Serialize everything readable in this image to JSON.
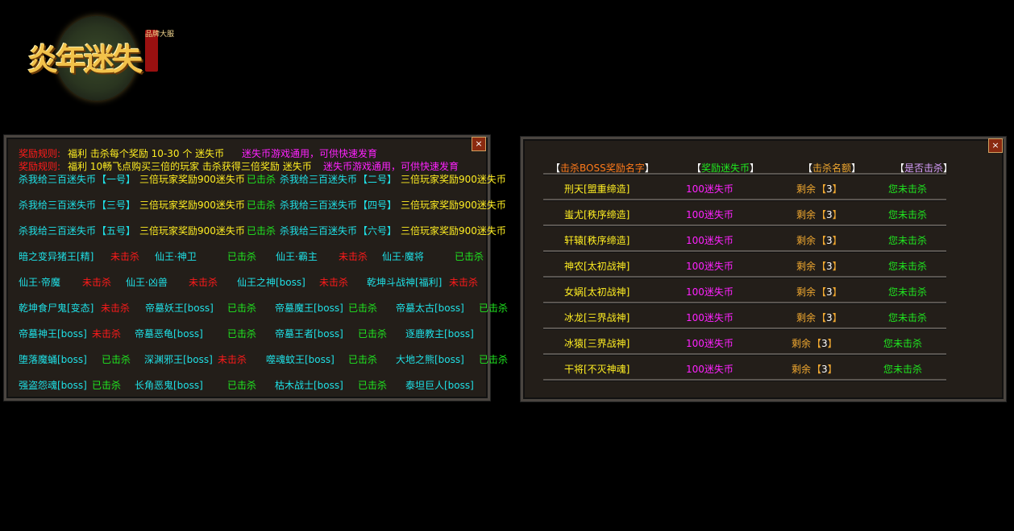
{
  "logo": {
    "title": "炎年迷失",
    "seal": "品牌大服"
  },
  "left_panel": {
    "close_label": "×",
    "rules": [
      {
        "label": "奖励规则:",
        "text": "福利  击杀每个奖励 10-30 个 迷失币",
        "note": "迷失币游戏通用，可供快速发育"
      },
      {
        "label": "奖励规则:",
        "text": "福利 10畅飞点购买三倍的玩家 击杀获得三倍奖励 迷失币",
        "note": "迷失币游戏通用，可供快速发育"
      }
    ],
    "special_rows": [
      [
        {
          "name": "杀我给三百迷失币",
          "tag": "【一号】",
          "reward": "三倍玩家奖励900迷失币",
          "status": "已击杀"
        },
        {
          "name": "杀我给三百迷失币",
          "tag": "【二号】",
          "reward": "三倍玩家奖励900迷失币"
        }
      ],
      [
        {
          "name": "杀我给三百迷失币",
          "tag": "【三号】",
          "reward": "三倍玩家奖励900迷失币",
          "status": "已击杀"
        },
        {
          "name": "杀我给三百迷失币",
          "tag": "【四号】",
          "reward": "三倍玩家奖励900迷失币"
        }
      ],
      [
        {
          "name": "杀我给三百迷失币",
          "tag": "【五号】",
          "reward": "三倍玩家奖励900迷失币",
          "status": "已击杀"
        },
        {
          "name": "杀我给三百迷失币",
          "tag": "【六号】",
          "reward": "三倍玩家奖励900迷失币"
        }
      ]
    ],
    "boss_rows": [
      [
        {
          "name": "暗之变异猪王[精]",
          "status": "未击杀"
        },
        {
          "name": "仙王·神卫",
          "status": "已击杀"
        },
        {
          "name": "仙王·霸主",
          "status": "未击杀"
        },
        {
          "name": "仙王·魔将",
          "status": "已击杀"
        }
      ],
      [
        {
          "name": "仙王·帝魔",
          "status": "未击杀"
        },
        {
          "name": "仙王·凶兽",
          "status": "未击杀"
        },
        {
          "name": "仙王之神[boss]",
          "status": "未击杀"
        },
        {
          "name": "乾坤斗战神[福利]",
          "status": "未击杀"
        }
      ],
      [
        {
          "name": "乾坤食尸鬼[变态]",
          "status": "未击杀"
        },
        {
          "name": "帝墓妖王[boss]",
          "status": "已击杀"
        },
        {
          "name": "帝墓魔王[boss]",
          "status": "已击杀"
        },
        {
          "name": "帝墓太古[boss]",
          "status": "已击杀"
        }
      ],
      [
        {
          "name": "帝墓神王[boss]",
          "status": "未击杀"
        },
        {
          "name": "帝墓恶龟[boss]",
          "status": "已击杀"
        },
        {
          "name": "帝墓王者[boss]",
          "status": "已击杀"
        },
        {
          "name": "逐鹿教主[boss]",
          "status": ""
        }
      ],
      [
        {
          "name": "堕落魔蛹[boss]",
          "status": "已击杀"
        },
        {
          "name": "深渊邪王[boss]",
          "status": "未击杀"
        },
        {
          "name": "噬魂蚊王[boss]",
          "status": "已击杀"
        },
        {
          "name": "大地之熊[boss]",
          "status": "已击杀"
        }
      ],
      [
        {
          "name": "强盗怨魂[boss]",
          "status": "已击杀"
        },
        {
          "name": "长角恶鬼[boss]",
          "status": "已击杀"
        },
        {
          "name": "枯木战士[boss]",
          "status": "已击杀"
        },
        {
          "name": "泰坦巨人[boss]",
          "status": ""
        }
      ]
    ]
  },
  "right_panel": {
    "close_label": "×",
    "headers": [
      "击杀BOSS奖励名字",
      "奖励迷失币",
      "击杀名额",
      "是否击杀"
    ],
    "rows": [
      {
        "name": "刑天[盟重缔造]",
        "reward": "100迷失币",
        "remain": "剩余",
        "count": "3",
        "status": "您未击杀"
      },
      {
        "name": "蚩尤[秩序缔造]",
        "reward": "100迷失币",
        "remain": "剩余",
        "count": "3",
        "status": "您未击杀"
      },
      {
        "name": "轩辕[秩序缔造]",
        "reward": "100迷失币",
        "remain": "剩余",
        "count": "3",
        "status": "您未击杀"
      },
      {
        "name": "神农[太初战神]",
        "reward": "100迷失币",
        "remain": "剩余",
        "count": "3",
        "status": "您未击杀"
      },
      {
        "name": "女娲[太初战神]",
        "reward": "100迷失币",
        "remain": "剩余",
        "count": "3",
        "status": "您未击杀"
      },
      {
        "name": "冰龙[三界战神]",
        "reward": "100迷失币",
        "remain": "剩余",
        "count": "3",
        "status": "您未击杀"
      },
      {
        "name": "冰猿[三界战神]",
        "reward": "100迷失币",
        "remain": "剩余",
        "count": "3",
        "status": "您未击杀"
      },
      {
        "name": "干将[不灭神魂]",
        "reward": "100迷失币",
        "remain": "剩余",
        "count": "3",
        "status": "您未击杀"
      }
    ]
  },
  "colors": {
    "cyan": "#1fe0e6",
    "yellow": "#ffee22",
    "green": "#1fe81f",
    "red": "#ff1a1a",
    "magenta": "#ff22ff"
  }
}
